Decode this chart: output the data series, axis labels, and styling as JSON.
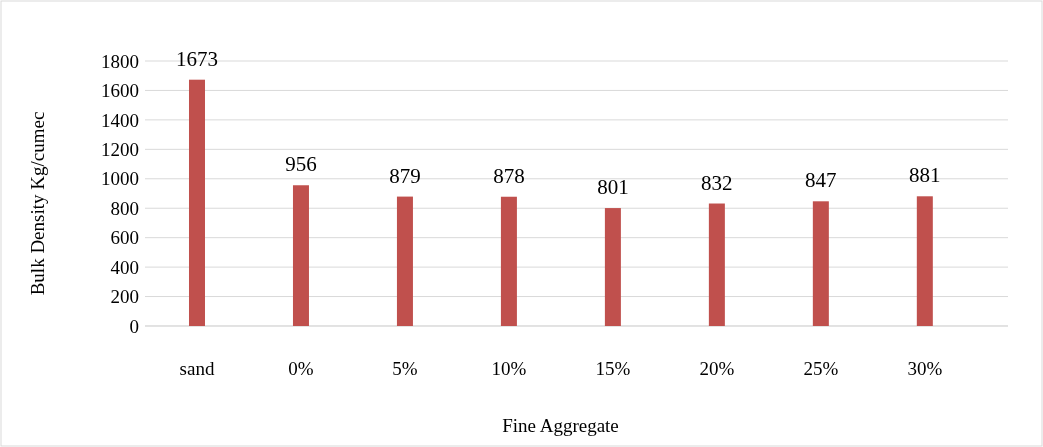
{
  "chart_data": {
    "type": "bar",
    "xlabel": "Fine Aggregate",
    "ylabel": "Bulk Density Kg/cumec",
    "categories": [
      "sand",
      "0%",
      "5%",
      "10%",
      "15%",
      "20%",
      "25%",
      "30%"
    ],
    "values": [
      1673,
      956,
      879,
      878,
      801,
      832,
      847,
      881
    ],
    "color": "#c0504d",
    "ylim": [
      0,
      1800
    ],
    "yticks": [
      0,
      200,
      400,
      600,
      800,
      1000,
      1200,
      1400,
      1600,
      1800
    ],
    "grid": "y",
    "data_labels": true
  }
}
